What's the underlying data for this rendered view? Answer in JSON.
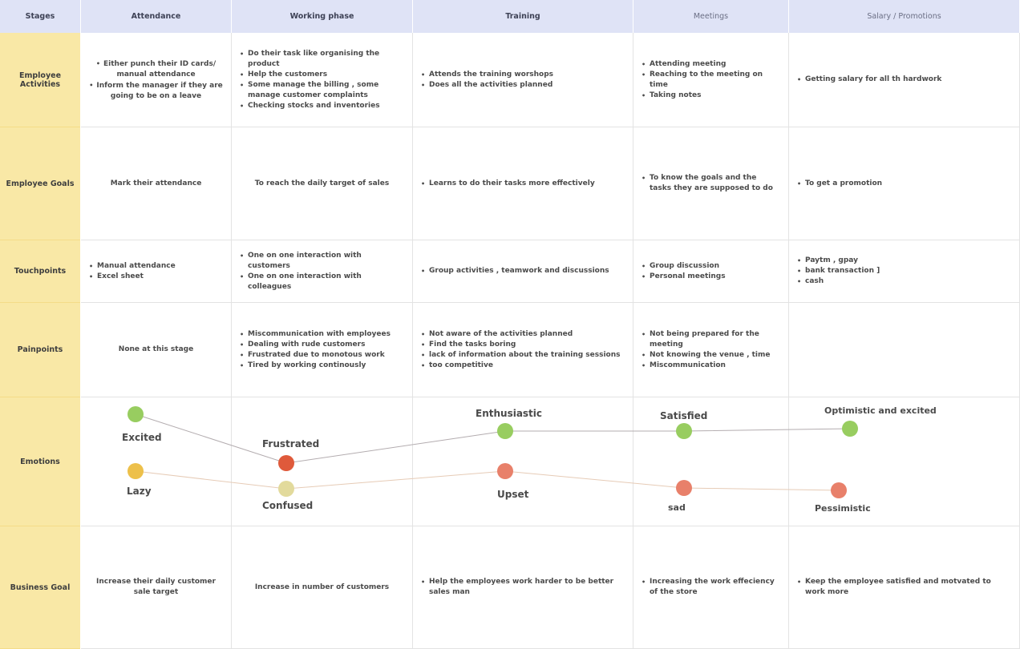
{
  "columns": {
    "stages": "Stages",
    "attendance": "Attendance",
    "working_phase": "Working phase",
    "training": "Training",
    "meetings": "Meetings",
    "salary": "Salary / Promotions"
  },
  "rows": {
    "employee_activities": {
      "label": "Employee Activities",
      "attendance": [
        "Either punch their ID cards/ manual attendance",
        "Inform the manager if they are going to be on a leave"
      ],
      "working_phase": [
        "Do their task like organising the product",
        "Help the customers",
        "Some manage the billing , some manage customer complaints",
        "Checking stocks and inventories"
      ],
      "training": [
        "Attends the training worshops",
        "Does all the activities planned"
      ],
      "meetings": [
        "Attending meeting",
        "Reaching to the meeting on time",
        "Taking notes"
      ],
      "salary": [
        "Getting salary for all th hardwork"
      ]
    },
    "employee_goals": {
      "label": "Employee Goals",
      "attendance": "Mark their attendance",
      "working_phase": "To reach the daily target of sales",
      "training": [
        "Learns to do their tasks more effectively"
      ],
      "meetings": [
        "To know the goals and the tasks they are supposed to do"
      ],
      "salary": [
        "To get a promotion"
      ]
    },
    "touchpoints": {
      "label": "Touchpoints",
      "attendance": [
        "Manual attendance",
        "Excel sheet"
      ],
      "working_phase": [
        "One on one interaction with customers",
        "One on one interaction with colleagues"
      ],
      "training": [
        "Group activities , teamwork and discussions"
      ],
      "meetings": [
        "Group discussion",
        "Personal meetings"
      ],
      "salary": [
        "Paytm , gpay",
        "bank transaction ]",
        "cash"
      ]
    },
    "painpoints": {
      "label": "Painpoints",
      "attendance": "None at this stage",
      "working_phase": [
        "Miscommunication with employees",
        "Dealing with rude customers",
        "Frustrated due to monotous work",
        "Tired by working continously"
      ],
      "training": [
        "Not aware of the activities planned",
        "Find the tasks boring",
        "lack of information about the training sessions",
        "too competitive"
      ],
      "meetings": [
        "Not being prepared for the meeting",
        "Not knowing the venue , time",
        "Miscommunication"
      ],
      "salary": []
    },
    "emotions": {
      "label": "Emotions",
      "positive": [
        "Excited",
        "Frustrated",
        "Enthusiastic",
        "Satisfied",
        "Optimistic and excited"
      ],
      "negative": [
        "Lazy",
        "Confused",
        "Upset",
        "sad",
        "Pessimistic"
      ],
      "colors": {
        "good": "#98cd60",
        "bad": "#df5a3b",
        "lazy": "#edc04a",
        "confused": "#e2da9c",
        "sad": "#e8806a",
        "line_top": "#b3acaf",
        "line_bottom": "#e6cbb6"
      }
    },
    "business_goal": {
      "label": "Business Goal",
      "attendance": "Increase their daily customer sale target",
      "working_phase": "Increase in number of customers",
      "training": [
        "Help the employees work harder to be better sales man"
      ],
      "meetings": [
        "Increasing the work effeciency of the store"
      ],
      "salary": [
        "Keep the employee satisfied and motvated to work more"
      ]
    }
  }
}
